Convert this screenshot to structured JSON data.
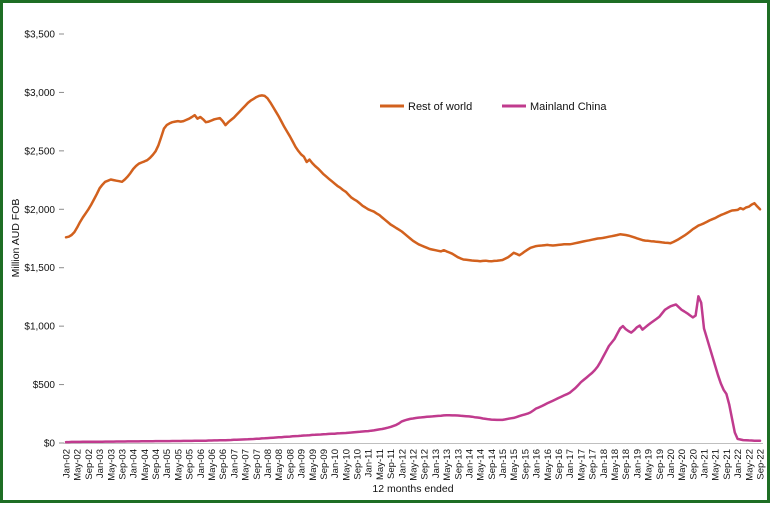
{
  "window": {
    "background_color": "#ffffff",
    "border_color": "#1e6e24"
  },
  "chart_data": {
    "type": "line",
    "title": "",
    "xlabel": "12 months ended",
    "ylabel": "Million AUD FOB",
    "ylim": [
      0,
      3500
    ],
    "grid": false,
    "legend_position": "inside-top-center",
    "axis_line_color": "#bfbfbf",
    "months_start": "Jan-02",
    "months_end": "Sep-22",
    "n_months": 249,
    "x_tick_step_months": 4,
    "x_tick_labels": [
      "Jan-02",
      "May-02",
      "Sep-02",
      "Jan-03",
      "May-03",
      "Sep-03",
      "Jan-04",
      "May-04",
      "Sep-04",
      "Jan-05",
      "May-05",
      "Sep-05",
      "Jan-06",
      "May-06",
      "Sep-06",
      "Jan-07",
      "May-07",
      "Sep-07",
      "Jan-08",
      "May-08",
      "Sep-08",
      "Jan-09",
      "May-09",
      "Sep-09",
      "Jan-10",
      "May-10",
      "Sep-10",
      "Jan-11",
      "May-11",
      "Sep-11",
      "Jan-12",
      "May-12",
      "Sep-12",
      "Jan-13",
      "May-13",
      "Sep-13",
      "Jan-14",
      "May-14",
      "Sep-14",
      "Jan-15",
      "May-15",
      "Sep-15",
      "Jan-16",
      "May-16",
      "Sep-16",
      "Jan-17",
      "May-17",
      "Sep-17",
      "Jan-18",
      "May-18",
      "Sep-18",
      "Jan-19",
      "May-19",
      "Sep-19",
      "Jan-20",
      "May-20",
      "Sep-20",
      "Jan-21",
      "May-21",
      "Sep-21",
      "Jan-22",
      "May-22",
      "Sep-22"
    ],
    "y_tick_labels": [
      "$0",
      "$500",
      "$1,000",
      "$1,500",
      "$2,000",
      "$2,500",
      "$3,000",
      "$3,500"
    ],
    "y_tick_values": [
      0,
      500,
      1000,
      1500,
      2000,
      2500,
      3000,
      3500
    ],
    "series": [
      {
        "name": "Rest of world",
        "color": "#d2611e",
        "values": [
          1760,
          1765,
          1780,
          1805,
          1845,
          1890,
          1930,
          1965,
          2000,
          2040,
          2085,
          2130,
          2180,
          2210,
          2235,
          2245,
          2255,
          2250,
          2245,
          2240,
          2235,
          2255,
          2280,
          2310,
          2345,
          2370,
          2390,
          2400,
          2410,
          2420,
          2440,
          2465,
          2495,
          2545,
          2615,
          2690,
          2720,
          2735,
          2745,
          2750,
          2755,
          2750,
          2755,
          2765,
          2775,
          2790,
          2805,
          2775,
          2790,
          2770,
          2745,
          2750,
          2760,
          2770,
          2775,
          2780,
          2755,
          2720,
          2745,
          2765,
          2785,
          2810,
          2835,
          2860,
          2885,
          2910,
          2930,
          2945,
          2960,
          2970,
          2975,
          2970,
          2950,
          2915,
          2875,
          2835,
          2795,
          2750,
          2705,
          2665,
          2625,
          2580,
          2535,
          2500,
          2470,
          2450,
          2405,
          2425,
          2395,
          2370,
          2350,
          2325,
          2300,
          2280,
          2260,
          2240,
          2220,
          2200,
          2185,
          2165,
          2150,
          2125,
          2100,
          2085,
          2070,
          2050,
          2030,
          2015,
          2000,
          1990,
          1980,
          1965,
          1950,
          1930,
          1910,
          1890,
          1870,
          1855,
          1840,
          1825,
          1810,
          1790,
          1770,
          1750,
          1730,
          1715,
          1700,
          1690,
          1680,
          1670,
          1660,
          1655,
          1650,
          1645,
          1640,
          1650,
          1640,
          1630,
          1620,
          1605,
          1590,
          1580,
          1570,
          1568,
          1565,
          1562,
          1560,
          1558,
          1556,
          1558,
          1560,
          1557,
          1555,
          1558,
          1560,
          1563,
          1566,
          1578,
          1590,
          1608,
          1628,
          1618,
          1606,
          1622,
          1640,
          1655,
          1670,
          1678,
          1685,
          1688,
          1690,
          1693,
          1695,
          1692,
          1690,
          1693,
          1695,
          1698,
          1700,
          1700,
          1700,
          1705,
          1710,
          1715,
          1720,
          1725,
          1730,
          1735,
          1740,
          1745,
          1750,
          1752,
          1755,
          1760,
          1765,
          1770,
          1775,
          1780,
          1786,
          1783,
          1780,
          1775,
          1768,
          1760,
          1752,
          1744,
          1736,
          1732,
          1730,
          1727,
          1725,
          1722,
          1720,
          1717,
          1714,
          1712,
          1710,
          1720,
          1732,
          1745,
          1760,
          1775,
          1792,
          1810,
          1830,
          1845,
          1860,
          1870,
          1880,
          1892,
          1905,
          1915,
          1925,
          1938,
          1950,
          1960,
          1970,
          1980,
          1990,
          1992,
          1995,
          2010,
          2000,
          2015,
          2022,
          2040,
          2052,
          2025,
          2000
        ]
      },
      {
        "name": "Mainland China",
        "color": "#c03b8e",
        "values": [
          8,
          8,
          9,
          9,
          9,
          9,
          10,
          10,
          10,
          10,
          11,
          11,
          11,
          11,
          12,
          12,
          12,
          12,
          13,
          13,
          13,
          13,
          14,
          14,
          14,
          14,
          14,
          15,
          15,
          15,
          15,
          15,
          16,
          16,
          16,
          16,
          16,
          16,
          17,
          17,
          17,
          17,
          18,
          18,
          18,
          18,
          19,
          19,
          19,
          20,
          20,
          21,
          21,
          22,
          22,
          23,
          23,
          24,
          25,
          26,
          27,
          28,
          29,
          30,
          31,
          32,
          33,
          34,
          36,
          37,
          39,
          40,
          42,
          44,
          45,
          47,
          49,
          50,
          52,
          54,
          55,
          57,
          59,
          60,
          62,
          64,
          65,
          67,
          69,
          70,
          72,
          73,
          75,
          76,
          78,
          79,
          80,
          82,
          83,
          85,
          86,
          88,
          90,
          92,
          94,
          96,
          98,
          100,
          102,
          105,
          108,
          112,
          116,
          120,
          125,
          131,
          138,
          146,
          155,
          168,
          185,
          193,
          200,
          206,
          210,
          214,
          217,
          219,
          222,
          224,
          226,
          228,
          230,
          232,
          234,
          236,
          238,
          237,
          236,
          236,
          235,
          233,
          231,
          229,
          228,
          225,
          221,
          218,
          215,
          210,
          206,
          203,
          200,
          199,
          198,
          198,
          198,
          202,
          207,
          211,
          215,
          222,
          230,
          238,
          245,
          252,
          262,
          278,
          295,
          305,
          316,
          328,
          340,
          351,
          362,
          373,
          385,
          396,
          407,
          418,
          430,
          450,
          470,
          495,
          520,
          540,
          560,
          580,
          600,
          625,
          655,
          695,
          740,
          785,
          830,
          860,
          890,
          935,
          980,
          1000,
          975,
          958,
          945,
          965,
          990,
          1005,
          970,
          990,
          1010,
          1028,
          1045,
          1062,
          1080,
          1110,
          1140,
          1155,
          1170,
          1178,
          1185,
          1162,
          1140,
          1125,
          1110,
          1092,
          1075,
          1090,
          1255,
          1200,
          980,
          900,
          820,
          740,
          660,
          580,
          510,
          455,
          420,
          330,
          210,
          90,
          35,
          30,
          25,
          24,
          22,
          21,
          20,
          20,
          20
        ]
      }
    ]
  }
}
